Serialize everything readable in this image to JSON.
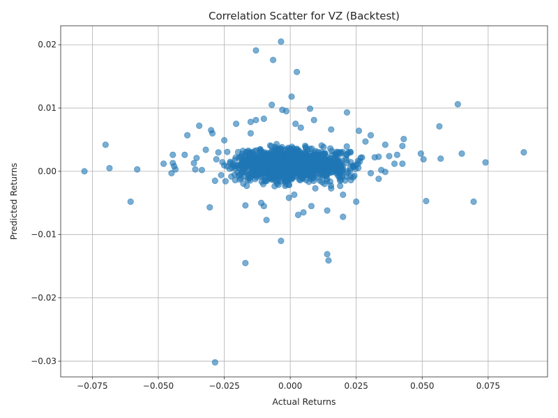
{
  "chart_data": {
    "type": "scatter",
    "title": "Correlation Scatter for VZ (Backtest)",
    "xlabel": "Actual Returns",
    "ylabel": "Predicted Returns",
    "xlim": [
      -0.087,
      0.0975
    ],
    "ylim": [
      -0.0325,
      0.023
    ],
    "xticks": [
      -0.075,
      -0.05,
      -0.025,
      0.0,
      0.025,
      0.05,
      0.075
    ],
    "xtick_labels": [
      "−0.075",
      "−0.050",
      "−0.025",
      "0.000",
      "0.025",
      "0.050",
      "0.075"
    ],
    "yticks": [
      -0.03,
      -0.02,
      -0.01,
      0.0,
      0.01,
      0.02
    ],
    "ytick_labels": [
      "−0.03",
      "−0.02",
      "−0.01",
      "0.00",
      "0.01",
      "0.02"
    ],
    "grid": true,
    "marker_color": "#1f77b4",
    "marker_alpha": 0.6,
    "cluster_center": [
      0.0,
      0.001
    ],
    "cluster_x_sd": 0.0105,
    "cluster_y_sd": 0.0012,
    "cluster_count": 1400,
    "cluster_seed": 7,
    "outliers": [
      [
        -0.078,
        0.0
      ],
      [
        -0.07,
        0.0042
      ],
      [
        -0.0685,
        0.0005
      ],
      [
        -0.0605,
        -0.0048
      ],
      [
        -0.058,
        0.0003
      ],
      [
        -0.048,
        0.0012
      ],
      [
        -0.045,
        -0.0003
      ],
      [
        -0.0445,
        0.0026
      ],
      [
        -0.0445,
        0.0013
      ],
      [
        -0.044,
        0.0008
      ],
      [
        -0.0435,
        0.0003
      ],
      [
        -0.04,
        0.0026
      ],
      [
        -0.039,
        0.0057
      ],
      [
        -0.0365,
        0.0013
      ],
      [
        -0.036,
        0.0003
      ],
      [
        -0.0355,
        0.0021
      ],
      [
        -0.0345,
        0.0072
      ],
      [
        -0.0335,
        0.0002
      ],
      [
        -0.032,
        0.0034
      ],
      [
        -0.03,
        0.0065
      ],
      [
        -0.0295,
        0.006
      ],
      [
        -0.0305,
        -0.0057
      ],
      [
        -0.0285,
        -0.0302
      ],
      [
        -0.028,
        0.0019
      ],
      [
        -0.0285,
        -0.0015
      ],
      [
        -0.025,
        0.0049
      ],
      [
        -0.0205,
        0.0075
      ],
      [
        -0.015,
        0.006
      ],
      [
        -0.015,
        0.0078
      ],
      [
        -0.013,
        0.0081
      ],
      [
        -0.013,
        0.0191
      ],
      [
        -0.01,
        0.0083
      ],
      [
        -0.0065,
        0.0176
      ],
      [
        -0.007,
        0.0105
      ],
      [
        -0.0035,
        0.0205
      ],
      [
        -0.003,
        0.0097
      ],
      [
        -0.0015,
        0.0095
      ],
      [
        0.0025,
        0.0157
      ],
      [
        0.0005,
        0.0118
      ],
      [
        0.0075,
        0.0099
      ],
      [
        0.0215,
        0.0093
      ],
      [
        0.009,
        0.0081
      ],
      [
        0.002,
        0.0075
      ],
      [
        0.004,
        0.0069
      ],
      [
        0.0155,
        0.0066
      ],
      [
        0.026,
        0.0064
      ],
      [
        0.0305,
        0.0057
      ],
      [
        0.0285,
        0.0047
      ],
      [
        0.036,
        0.0042
      ],
      [
        0.043,
        0.0051
      ],
      [
        0.0425,
        0.004
      ],
      [
        0.0495,
        0.0028
      ],
      [
        0.0405,
        0.0026
      ],
      [
        0.0375,
        0.0024
      ],
      [
        0.0335,
        0.0023
      ],
      [
        0.032,
        0.0022
      ],
      [
        0.0345,
        0.0002
      ],
      [
        0.036,
        -0.0001
      ],
      [
        0.0335,
        -0.0012
      ],
      [
        0.0305,
        -0.0003
      ],
      [
        0.0395,
        0.0012
      ],
      [
        0.0425,
        0.0012
      ],
      [
        0.0505,
        0.0019
      ],
      [
        0.0515,
        -0.0047
      ],
      [
        0.0565,
        0.0071
      ],
      [
        0.057,
        0.002
      ],
      [
        0.0635,
        0.0106
      ],
      [
        0.065,
        0.0028
      ],
      [
        0.0695,
        -0.0048
      ],
      [
        0.074,
        0.0014
      ],
      [
        0.0885,
        0.003
      ],
      [
        0.025,
        -0.0048
      ],
      [
        0.02,
        -0.0037
      ],
      [
        0.02,
        -0.0072
      ],
      [
        0.014,
        -0.0062
      ],
      [
        0.014,
        -0.0131
      ],
      [
        0.0145,
        -0.0141
      ],
      [
        0.008,
        -0.0055
      ],
      [
        0.005,
        -0.0065
      ],
      [
        0.003,
        -0.0069
      ],
      [
        0.0015,
        -0.0037
      ],
      [
        -0.0035,
        -0.011
      ],
      [
        -0.009,
        -0.0077
      ],
      [
        -0.01,
        -0.0055
      ],
      [
        -0.011,
        -0.005
      ],
      [
        -0.017,
        -0.0145
      ],
      [
        -0.017,
        -0.0054
      ],
      [
        -0.0165,
        -0.0023
      ],
      [
        -0.0005,
        -0.0042
      ],
      [
        0.0095,
        -0.0027
      ],
      [
        0.0155,
        -0.0027
      ],
      [
        0.013,
        -0.002
      ],
      [
        0.023,
        -0.0014
      ]
    ]
  }
}
